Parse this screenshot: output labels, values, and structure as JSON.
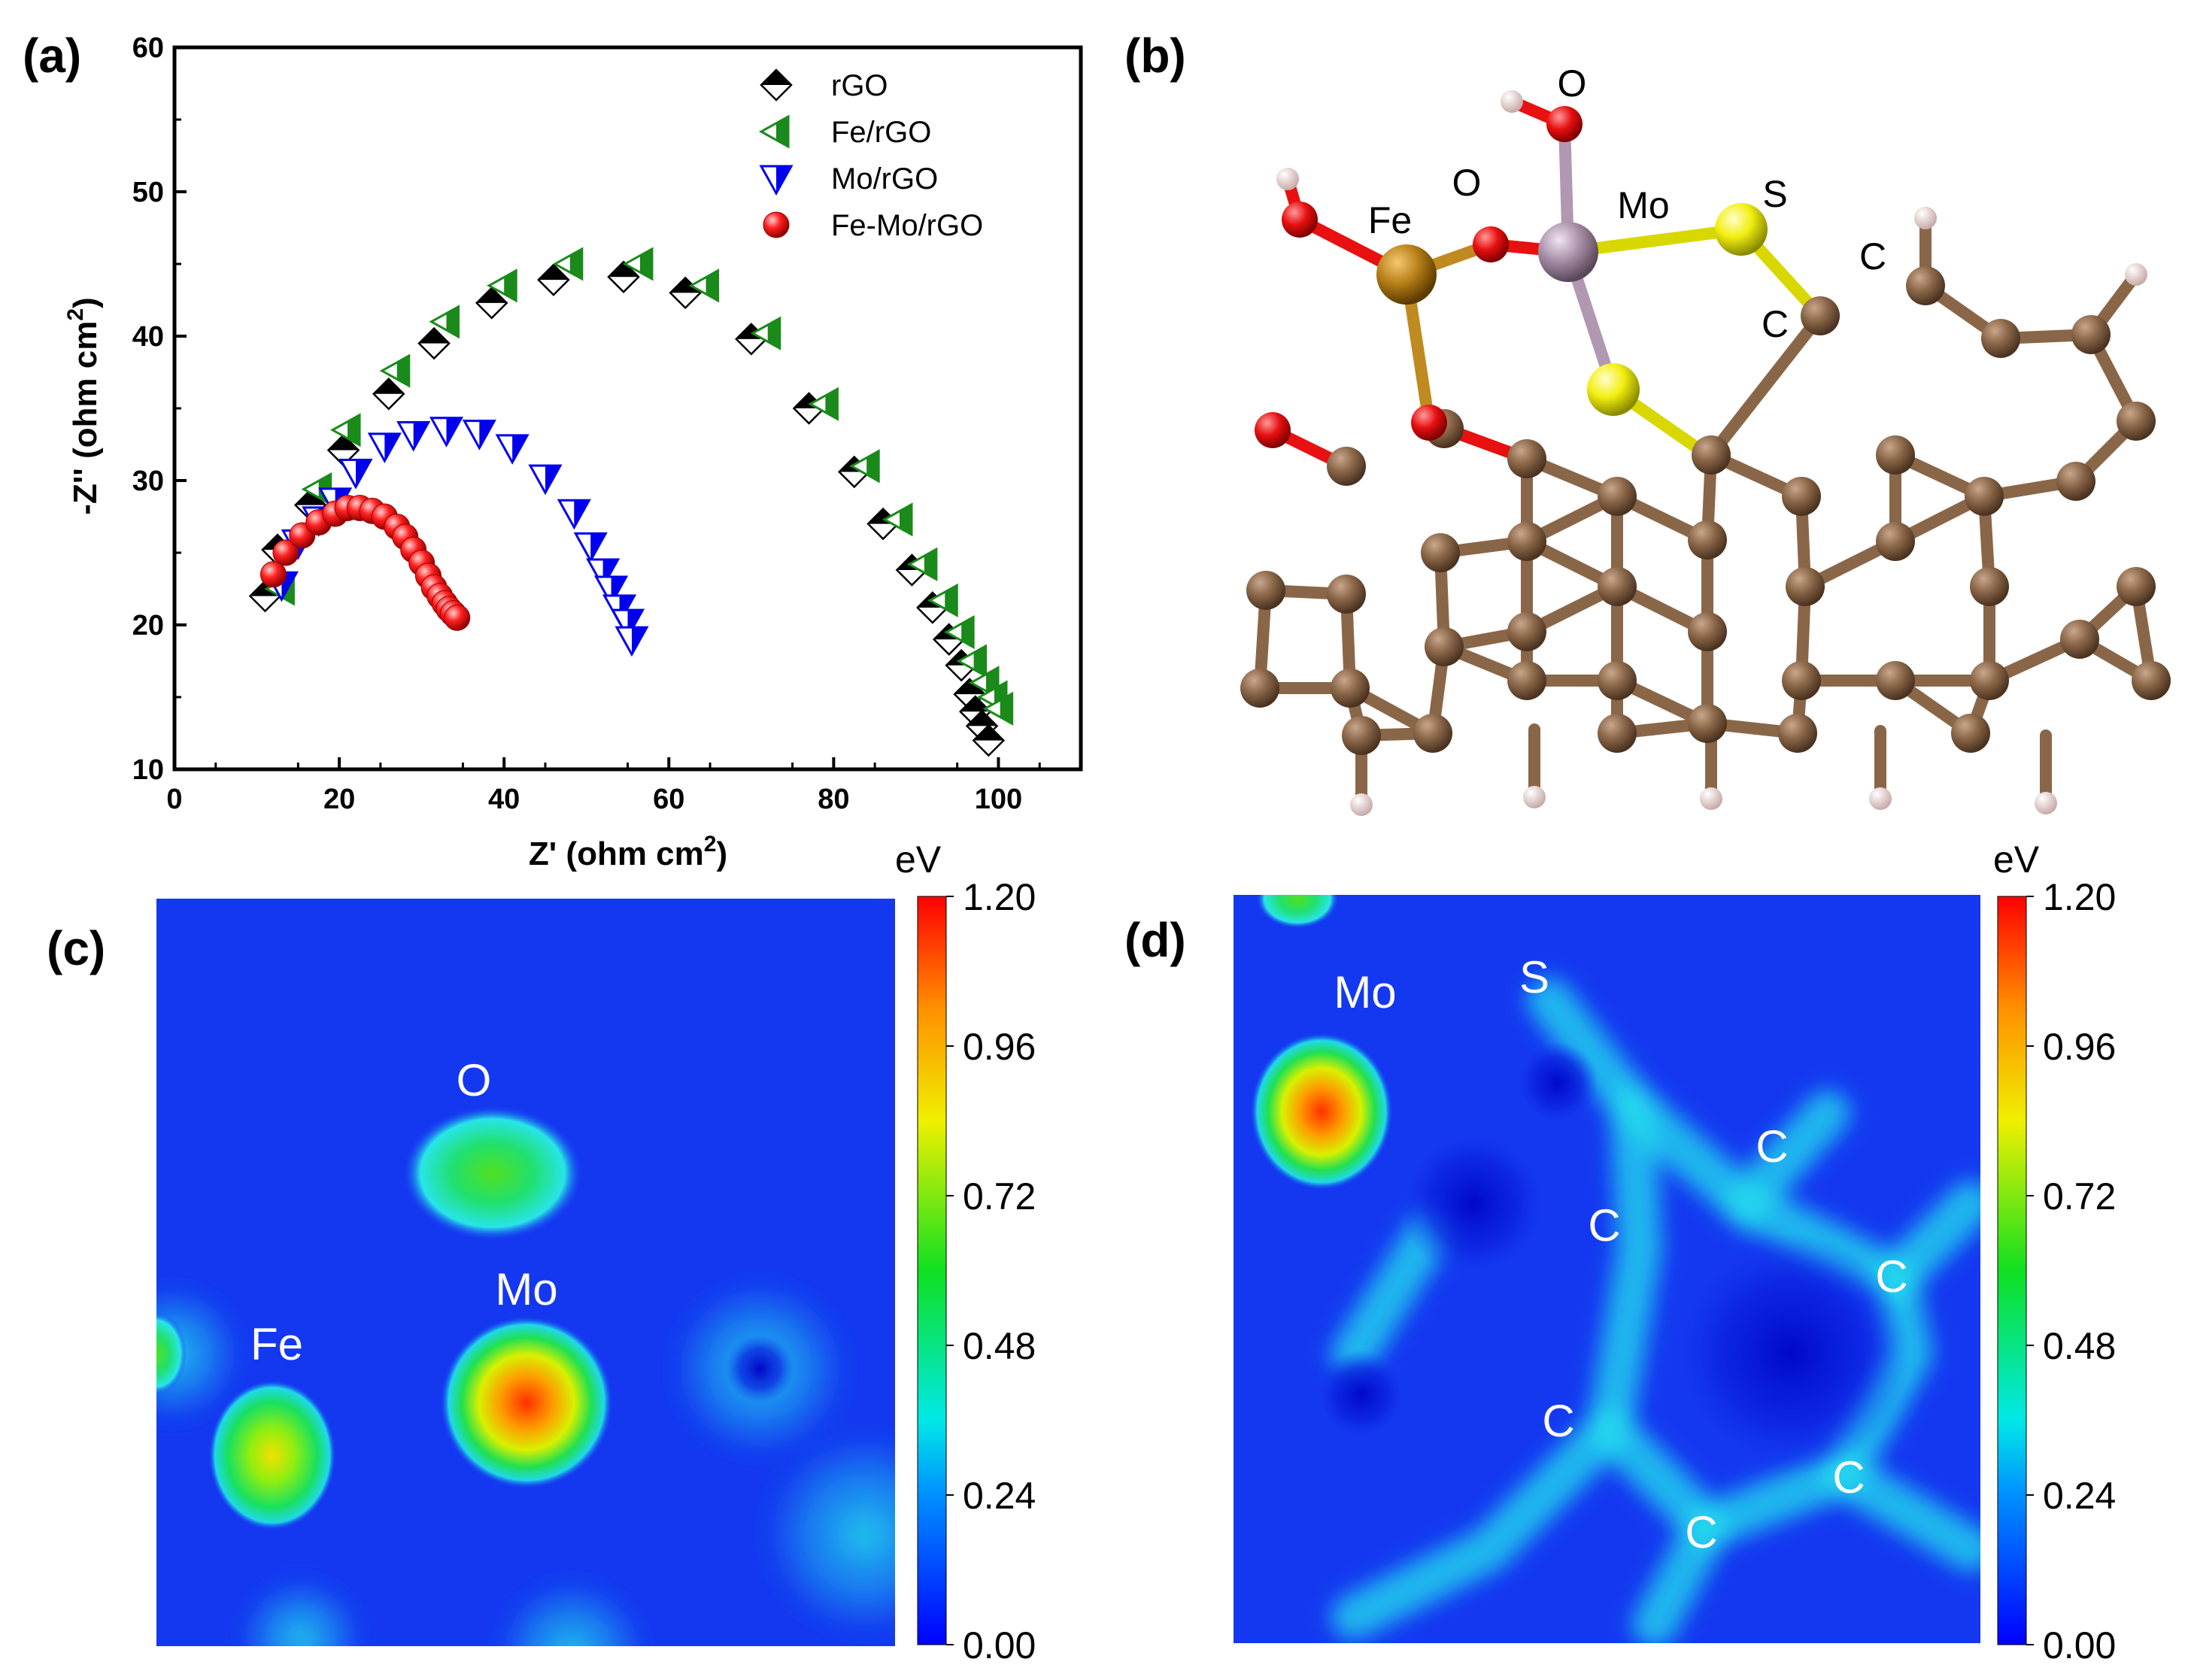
{
  "panels": {
    "a": {
      "label": "(a)"
    },
    "b": {
      "label": "(b)"
    },
    "c": {
      "label": "(c)"
    },
    "d": {
      "label": "(d)"
    }
  },
  "chart_data": {
    "type": "scatter",
    "title": "",
    "xlabel": "Z' (ohm cm",
    "ylabel": "-Z'' (ohm cm",
    "unit_superscript": "2",
    "xlim": [
      0,
      110
    ],
    "ylim": [
      10,
      60
    ],
    "xticks": [
      0,
      20,
      40,
      60,
      80,
      100
    ],
    "yticks": [
      10,
      20,
      30,
      40,
      50,
      60
    ],
    "legend_position": "top-right",
    "series": [
      {
        "name": "rGO",
        "color": "#000000",
        "marker": "diamond",
        "x": [
          11,
          12.5,
          16.5,
          20.5,
          26,
          31.5,
          38.5,
          46,
          54.5,
          62,
          70,
          77,
          82.5,
          86,
          89.5,
          92,
          94,
          95.5,
          96.5,
          97.2,
          98,
          98.8
        ],
        "y": [
          22,
          25.2,
          28.3,
          32.1,
          36,
          39.5,
          42.3,
          43.9,
          44.1,
          43,
          39.8,
          35,
          30.6,
          27,
          23.8,
          21.2,
          19,
          17.2,
          15.2,
          14,
          13,
          12
        ]
      },
      {
        "name": "Fe/rGO",
        "color": "#1a8a1a",
        "marker": "triangle-left",
        "x": [
          13,
          17.5,
          21,
          27,
          33,
          40,
          48,
          56.5,
          64.5,
          72,
          79,
          84,
          88,
          91,
          93.5,
          95.5,
          97,
          98.5,
          99.5,
          100.2
        ],
        "y": [
          22.5,
          29.4,
          33.5,
          37.6,
          41,
          43.5,
          45,
          45,
          43.5,
          40.2,
          35.3,
          31,
          27.3,
          24.2,
          21.7,
          19.5,
          17.5,
          16,
          15,
          14.2
        ]
      },
      {
        "name": "Mo/rGO",
        "color": "#0000ee",
        "marker": "triangle-down",
        "x": [
          13,
          15,
          17.5,
          19.5,
          22,
          25.5,
          29,
          33,
          37,
          41,
          45,
          48.5,
          50.5,
          52,
          53,
          54,
          55,
          55.5
        ],
        "y": [
          22.8,
          25.7,
          27.3,
          28.6,
          30.6,
          32.4,
          33.2,
          33.5,
          33.3,
          32.3,
          30.2,
          27.8,
          25.5,
          23.7,
          22.5,
          21.2,
          20.2,
          19
        ]
      },
      {
        "name": "Fe-Mo/rGO",
        "color": "#ee1111",
        "marker": "sphere",
        "x": [
          12,
          13.5,
          15.5,
          17.5,
          19.5,
          21,
          22.5,
          24,
          25.5,
          27,
          28,
          29,
          30,
          30.8,
          31.5,
          32.2,
          32.8,
          33.3,
          33.8,
          34.3
        ],
        "y": [
          23.5,
          25,
          26.2,
          27.1,
          27.7,
          28.1,
          28.1,
          27.9,
          27.5,
          26.8,
          26.1,
          25.2,
          24.3,
          23.4,
          22.6,
          22,
          21.5,
          21.1,
          20.8,
          20.5
        ]
      }
    ]
  },
  "structure": {
    "atom_labels": {
      "o_top": "O",
      "o_mid": "O",
      "fe": "Fe",
      "mo": "Mo",
      "s": "S",
      "c1": "C",
      "c2": "C"
    }
  },
  "map_c": {
    "labels": {
      "o": "O",
      "mo": "Mo",
      "fe": "Fe"
    },
    "colorbar": {
      "unit": "eV",
      "ticks": [
        "1.20",
        "0.96",
        "0.72",
        "0.48",
        "0.24",
        "0.00"
      ]
    }
  },
  "map_d": {
    "labels": {
      "mo": "Mo",
      "s": "S",
      "c1": "C",
      "c2": "C",
      "c3": "C",
      "c4": "C",
      "c5": "C",
      "c6": "C"
    },
    "colorbar": {
      "unit": "eV",
      "ticks": [
        "1.20",
        "0.96",
        "0.72",
        "0.48",
        "0.24",
        "0.00"
      ]
    }
  },
  "colors": {
    "map_bg": "#1438f0",
    "glow": "#22dfee"
  }
}
